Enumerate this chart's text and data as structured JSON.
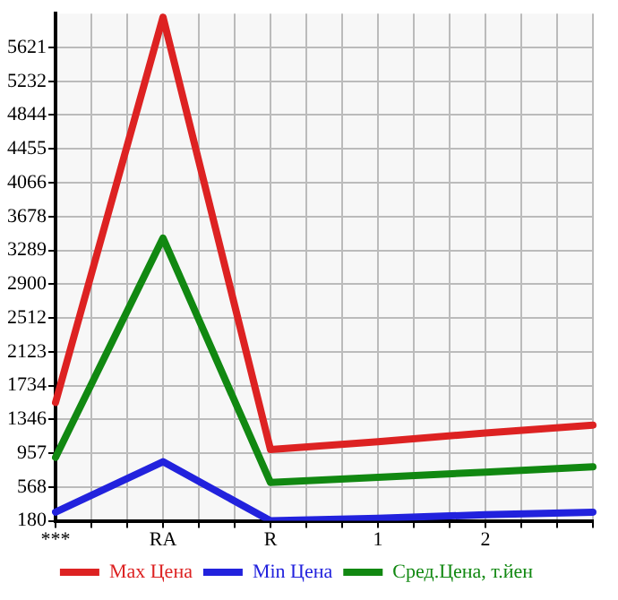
{
  "chart_data": {
    "type": "line",
    "categories": [
      "***",
      "RA",
      "R",
      "1",
      "2",
      null
    ],
    "series": [
      {
        "name": "Max Цена",
        "color": "#dd2222",
        "values": [
          1540,
          5970,
          1000,
          1090,
          1190,
          1280
        ]
      },
      {
        "name": "Min Цена",
        "color": "#2222dd",
        "values": [
          280,
          860,
          180,
          210,
          250,
          280
        ]
      },
      {
        "name": "Сред.Цена, т.йен",
        "color": "#118811",
        "values": [
          910,
          3430,
          620,
          680,
          740,
          800
        ]
      }
    ],
    "ylim": [
      180,
      6010
    ],
    "yticks": [
      180,
      568,
      957,
      1346,
      1734,
      2123,
      2512,
      2900,
      3289,
      3678,
      4066,
      4455,
      4844,
      5232,
      5621
    ],
    "grid": true,
    "legend": "bottom",
    "marker": "none",
    "line_style": "solid"
  }
}
